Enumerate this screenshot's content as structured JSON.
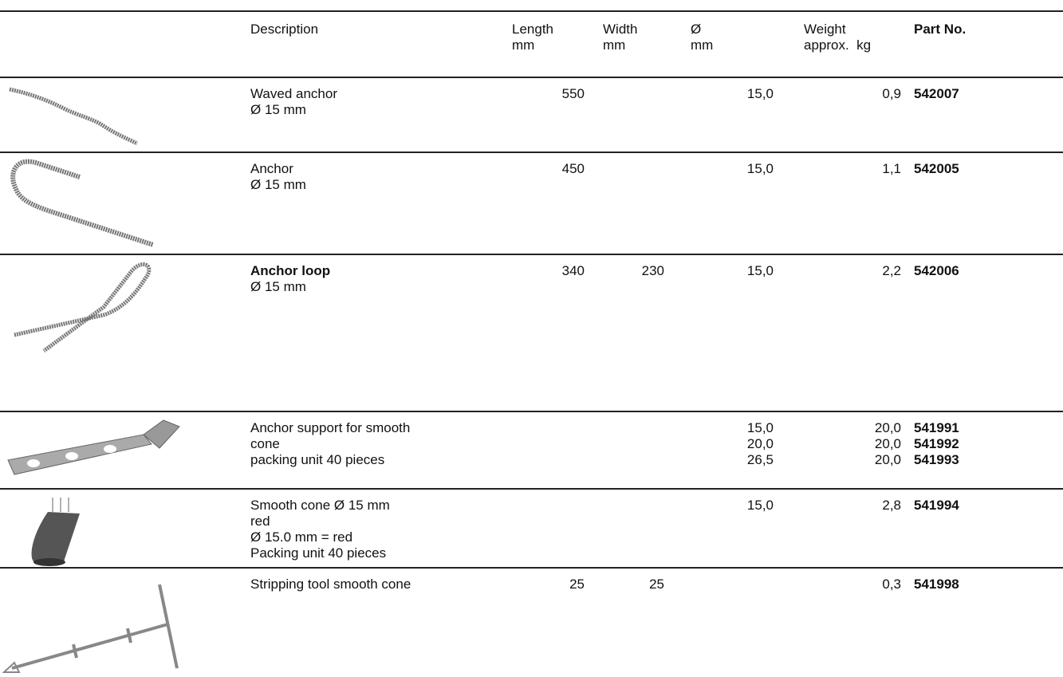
{
  "table": {
    "header": {
      "description": [
        "Description"
      ],
      "length": [
        "Length",
        "mm"
      ],
      "width": [
        "Width",
        "mm"
      ],
      "diameter": [
        "Ø",
        "mm"
      ],
      "weight": [
        "Weight",
        "approx.  kg"
      ],
      "part_no": [
        "Part No."
      ]
    },
    "rows": [
      {
        "description": [
          "Waved anchor",
          "Ø 15 mm"
        ],
        "length": [
          "550"
        ],
        "diameter": [
          "15,0"
        ],
        "weight": [
          "0,9"
        ],
        "part_no": [
          "542007"
        ]
      },
      {
        "description": [
          "Anchor",
          "Ø 15 mm"
        ],
        "length": [
          "450"
        ],
        "diameter": [
          "15,0"
        ],
        "weight": [
          "1,1"
        ],
        "part_no": [
          "542005"
        ]
      },
      {
        "description": [
          "Anchor loop",
          "Ø 15 mm"
        ],
        "bold_first_line": true,
        "length": [
          "340"
        ],
        "width": [
          "230"
        ],
        "diameter": [
          "15,0"
        ],
        "weight": [
          "2,2"
        ],
        "part_no": [
          "542006"
        ]
      },
      {
        "description": [
          "Anchor support for smooth",
          "cone",
          "packing unit 40 pieces"
        ],
        "diameter": [
          "15,0",
          "20,0",
          "26,5"
        ],
        "weight": [
          "20,0",
          "20,0",
          "20,0"
        ],
        "part_no": [
          "541991",
          "541992",
          "541993"
        ]
      },
      {
        "description": [
          "Smooth cone Ø 15 mm",
          "red",
          "Ø 15.0 mm = red",
          "Packing unit 40 pieces"
        ],
        "diameter": [
          "15,0"
        ],
        "weight": [
          "2,8"
        ],
        "part_no": [
          "541994"
        ]
      },
      {
        "description": [
          "Stripping tool smooth cone"
        ],
        "length": [
          "25"
        ],
        "width": [
          "25"
        ],
        "weight": [
          "0,3"
        ],
        "part_no": [
          "541998"
        ]
      }
    ]
  }
}
